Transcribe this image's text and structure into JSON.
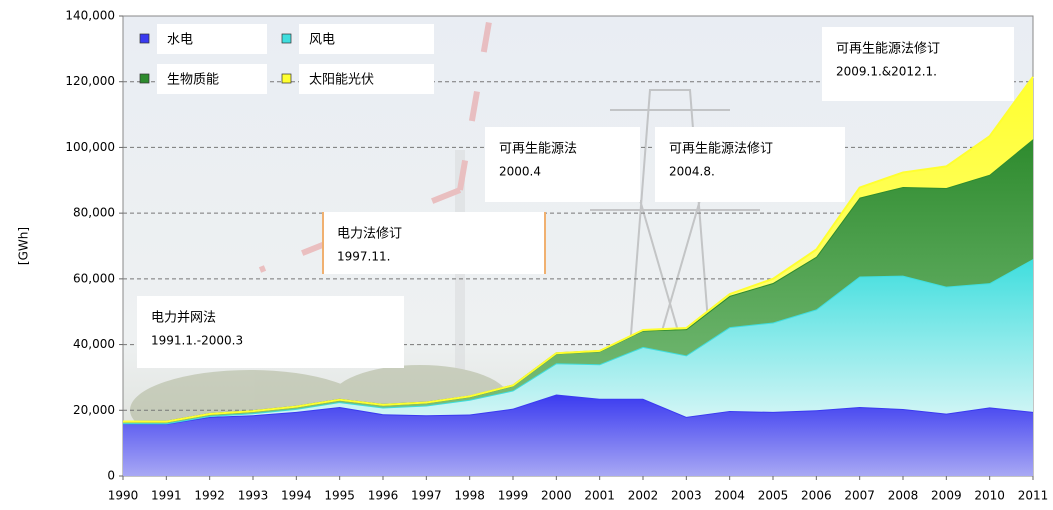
{
  "chart_data": {
    "type": "stacked-area",
    "y_label": "[GWh]",
    "categories": [
      "1990",
      "1991",
      "1992",
      "1993",
      "1994",
      "1995",
      "1996",
      "1997",
      "1998",
      "1999",
      "2000",
      "2001",
      "2002",
      "2003",
      "2004",
      "2005",
      "2006",
      "2007",
      "2008",
      "2009",
      "2010",
      "2011"
    ],
    "series": [
      {
        "name": "水电",
        "color": "#3a3af0",
        "values": [
          16000,
          15900,
          18000,
          18500,
          19500,
          21000,
          18800,
          18500,
          18700,
          20500,
          24800,
          23500,
          23500,
          18000,
          19800,
          19500,
          20000,
          21000,
          20400,
          19000,
          20900,
          19500
        ]
      },
      {
        "name": "风电",
        "color": "#3fdede",
        "values": [
          71,
          100,
          275,
          600,
          909,
          1500,
          2032,
          2966,
          4489,
          5528,
          9513,
          10509,
          15786,
          18713,
          25509,
          27229,
          30710,
          39713,
          40574,
          38639,
          37793,
          46500
        ]
      },
      {
        "name": "生物质能",
        "color": "#2e8b2e",
        "values": [
          500,
          550,
          600,
          650,
          700,
          700,
          800,
          900,
          1000,
          1500,
          3000,
          4000,
          5000,
          8000,
          9500,
          12000,
          16000,
          24000,
          27000,
          30000,
          33000,
          36500
        ]
      },
      {
        "name": "太阳能光伏",
        "color": "#ffff30",
        "values": [
          1,
          1,
          4,
          3,
          6,
          7,
          12,
          18,
          35,
          30,
          64,
          76,
          162,
          313,
          557,
          1282,
          2220,
          3075,
          4420,
          6583,
          11729,
          19000
        ]
      }
    ],
    "ylim": [
      0,
      140000
    ],
    "yticks": [
      0,
      {
        "value": 20000,
        "label": "20,000"
      },
      {
        "value": 40000,
        "label": "40,000"
      },
      {
        "value": 60000,
        "label": "60,000"
      },
      {
        "value": 80000,
        "label": "80,000"
      },
      {
        "value": 100000,
        "label": "100,000"
      },
      {
        "value": 120000,
        "label": "120,000"
      },
      {
        "value": 140000,
        "label": "140,000"
      }
    ],
    "grid": true,
    "annotations": [
      {
        "title": "电力并网法",
        "date": "1991.1.-2000.3"
      },
      {
        "title": "电力法修订",
        "date": "1997.11."
      },
      {
        "title": "可再生能源法",
        "date": "2000.4"
      },
      {
        "title": "可再生能源法修订",
        "date": "2004.8."
      },
      {
        "title": "可再生能源法修订",
        "date": "2009.1.&2012.1."
      }
    ]
  }
}
